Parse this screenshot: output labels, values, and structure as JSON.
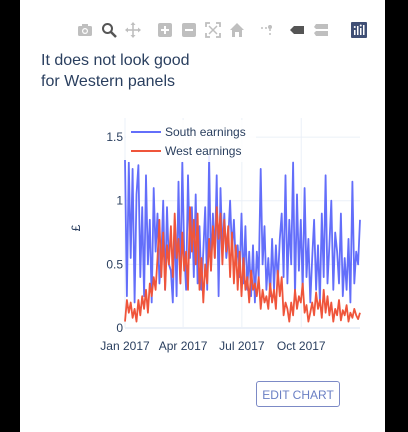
{
  "modebar": {
    "icons": [
      "camera-icon",
      "zoom-icon",
      "pan-icon",
      "zoom-in-icon",
      "zoom-out-icon",
      "autoscale-icon",
      "home-icon",
      "spike-lines-icon",
      "hover-closest-icon",
      "hover-compare-icon",
      "plotly-logo-icon"
    ],
    "color": "#bfbfbf",
    "active_color": "#555555"
  },
  "edit_button": {
    "label": "EDIT CHART"
  },
  "chart_data": {
    "type": "line",
    "title_lines": [
      "It does not look good",
      "for Western panels"
    ],
    "xlabel": "",
    "ylabel": "£",
    "x_start": "2017-01-01",
    "x_end": "2017-12-31",
    "x_tick_labels": [
      "Jan 2017",
      "Apr 2017",
      "Jul 2017",
      "Oct 2017"
    ],
    "x_ticks": [
      "2017-01-01",
      "2017-04-01",
      "2017-07-01",
      "2017-10-01"
    ],
    "ylim": [
      0,
      1.65
    ],
    "y_ticks": [
      0,
      0.5,
      1,
      1.5
    ],
    "y_tick_labels": [
      "0",
      "0.5",
      "1",
      "1.5"
    ],
    "grid": true,
    "legend_position": "top-left",
    "series": [
      {
        "name": "South earnings",
        "color": "#636efa",
        "values": [
          1.32,
          0.25,
          1.3,
          0.55,
          1.25,
          0.2,
          1.05,
          1.28,
          0.4,
          0.95,
          0.25,
          1.2,
          0.5,
          0.85,
          0.2,
          1.1,
          0.6,
          0.9,
          0.35,
          0.55,
          1.0,
          0.3,
          0.95,
          0.5,
          0.45,
          0.2,
          0.85,
          0.25,
          1.15,
          0.35,
          1.3,
          0.6,
          0.3,
          1.2,
          0.55,
          0.95,
          0.4,
          1.05,
          0.35,
          0.8,
          0.3,
          0.6,
          0.95,
          0.3,
          1.35,
          0.45,
          0.9,
          0.55,
          1.2,
          0.25,
          1.1,
          0.6,
          0.9,
          0.55,
          0.7,
          1.0,
          0.6,
          0.85,
          0.5,
          0.65,
          0.4,
          0.9,
          0.35,
          0.8,
          0.3,
          0.6,
          0.25,
          0.65,
          0.2,
          0.6,
          0.4,
          1.25,
          0.5,
          0.8,
          0.3,
          0.55,
          0.25,
          0.7,
          0.3,
          0.65,
          0.35,
          0.7,
          0.9,
          0.4,
          1.2,
          0.35,
          0.85,
          0.5,
          1.3,
          0.25,
          1.05,
          0.45,
          0.85,
          0.3,
          1.1,
          0.4,
          0.7,
          0.2,
          0.55,
          0.85,
          0.3,
          0.65,
          0.2,
          0.9,
          0.4,
          1.2,
          0.35,
          0.65,
          1.0,
          0.3,
          0.75,
          0.6,
          0.35,
          0.9,
          0.25,
          0.55,
          0.3,
          0.7,
          0.2,
          1.15,
          0.35,
          0.6,
          0.5,
          0.85
        ]
      },
      {
        "name": "West earnings",
        "color": "#ef553b",
        "values": [
          0.05,
          0.22,
          0.12,
          0.2,
          0.08,
          0.15,
          0.05,
          0.22,
          0.1,
          0.25,
          0.15,
          0.3,
          0.12,
          0.35,
          0.25,
          0.4,
          0.3,
          0.55,
          0.85,
          0.4,
          0.75,
          0.3,
          0.65,
          0.5,
          0.8,
          0.4,
          0.9,
          0.55,
          0.7,
          0.35,
          0.75,
          0.45,
          0.6,
          0.3,
          0.95,
          0.6,
          0.85,
          0.5,
          0.9,
          0.3,
          0.55,
          0.2,
          0.5,
          0.35,
          0.7,
          0.45,
          0.8,
          0.55,
          0.95,
          0.7,
          0.9,
          0.5,
          0.85,
          0.6,
          0.8,
          0.4,
          0.75,
          0.35,
          0.65,
          0.3,
          0.6,
          0.25,
          0.55,
          0.3,
          0.4,
          0.2,
          0.45,
          0.3,
          0.35,
          0.25,
          0.4,
          0.15,
          0.3,
          0.2,
          0.25,
          0.15,
          0.35,
          0.2,
          0.3,
          0.15,
          0.45,
          0.25,
          0.4,
          0.1,
          0.2,
          0.15,
          0.05,
          0.2,
          0.1,
          0.3,
          0.15,
          0.25,
          0.2,
          0.35,
          0.12,
          0.18,
          0.05,
          0.12,
          0.2,
          0.1,
          0.28,
          0.15,
          0.22,
          0.08,
          0.3,
          0.12,
          0.25,
          0.1,
          0.2,
          0.05,
          0.15,
          0.1,
          0.22,
          0.06,
          0.14,
          0.1,
          0.18,
          0.05,
          0.12,
          0.08,
          0.15,
          0.1,
          0.07,
          0.12
        ]
      }
    ]
  }
}
